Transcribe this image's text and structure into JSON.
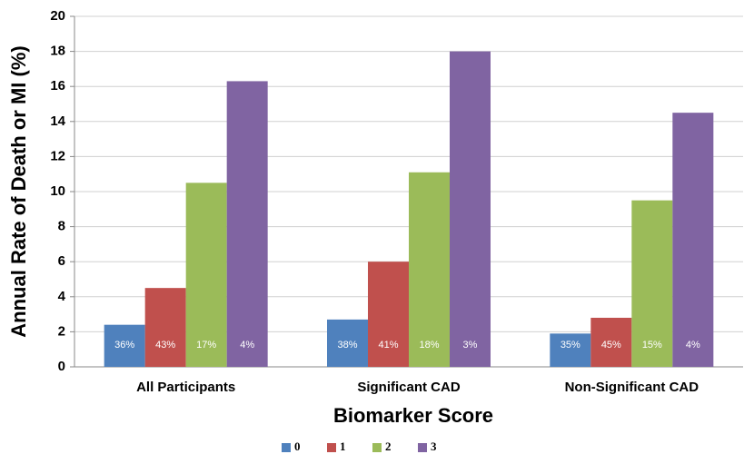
{
  "chart_data": {
    "type": "bar",
    "x_label": "Biomarker Score",
    "y_label": "Annual Rate of Death or MI (%)",
    "categories": [
      "All Participants",
      "Significant CAD",
      "Non-Significant CAD"
    ],
    "series": [
      {
        "name": "0",
        "color": "#4f81bd",
        "values": [
          2.4,
          2.7,
          1.9
        ],
        "bar_labels": [
          "36%",
          "38%",
          "35%"
        ]
      },
      {
        "name": "1",
        "color": "#c0504d",
        "values": [
          4.5,
          6.0,
          2.8
        ],
        "bar_labels": [
          "43%",
          "41%",
          "45%"
        ]
      },
      {
        "name": "2",
        "color": "#9bbb59",
        "values": [
          10.5,
          11.1,
          9.5
        ],
        "bar_labels": [
          "17%",
          "18%",
          "15%"
        ]
      },
      {
        "name": "3",
        "color": "#8064a2",
        "values": [
          16.3,
          18.0,
          14.5
        ],
        "bar_labels": [
          "4%",
          "3%",
          "4%"
        ]
      }
    ],
    "ylim": [
      0,
      20
    ],
    "yticks": [
      0,
      2,
      4,
      6,
      8,
      10,
      12,
      14,
      16,
      18,
      20
    ],
    "grid": true,
    "legend": "bottom"
  }
}
